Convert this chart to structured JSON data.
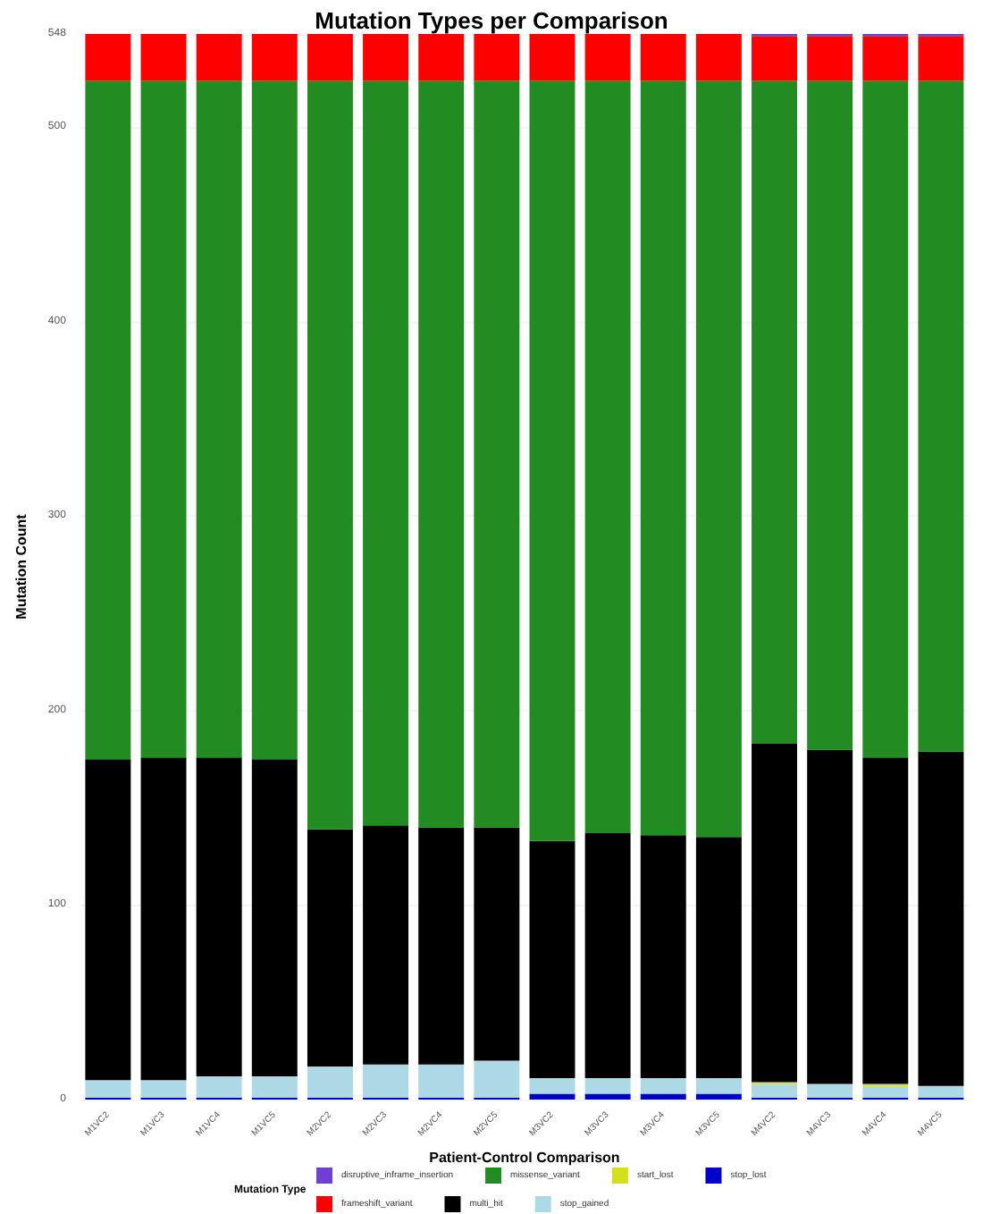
{
  "chart_data": {
    "type": "bar",
    "title": "Mutation Types per Comparison",
    "xlabel": "Patient-Control Comparison",
    "ylabel": "Mutation Count",
    "legend_title": "Mutation Type",
    "categories": [
      "M1VC2",
      "M1VC3",
      "M1VC4",
      "M1VC5",
      "M2VC2",
      "M2VC3",
      "M2VC4",
      "M2VC5",
      "M3VC2",
      "M3VC3",
      "M3VC4",
      "M3VC5",
      "M4VC2",
      "M4VC3",
      "M4VC4",
      "M4VC5"
    ],
    "stacked": true,
    "ylim": [
      0,
      548
    ],
    "yticks": [
      0,
      100,
      200,
      300,
      400,
      500,
      548
    ],
    "grid": "y",
    "legend": "bottom",
    "series": [
      {
        "name": "stop_lost",
        "color": "#0000cd",
        "values": [
          1,
          1,
          1,
          1,
          1,
          1,
          1,
          1,
          3,
          3,
          3,
          3,
          1,
          1,
          1,
          1
        ]
      },
      {
        "name": "stop_gained",
        "color": "#add8e6",
        "values": [
          9,
          9,
          11,
          11,
          16,
          17,
          17,
          19,
          8,
          8,
          8,
          8,
          7,
          7,
          6,
          6
        ]
      },
      {
        "name": "start_lost",
        "color": "#d4e01c",
        "values": [
          0,
          0,
          0,
          0,
          0,
          0,
          0,
          0,
          0,
          0,
          0,
          0,
          1,
          0,
          1,
          0
        ]
      },
      {
        "name": "multi_hit",
        "color": "#000000",
        "values": [
          165,
          166,
          164,
          163,
          122,
          123,
          122,
          120,
          122,
          126,
          125,
          124,
          174,
          172,
          168,
          172
        ]
      },
      {
        "name": "missense_variant",
        "color": "#228b22",
        "values": [
          349,
          348,
          348,
          349,
          385,
          383,
          384,
          384,
          391,
          387,
          388,
          389,
          341,
          344,
          348,
          345
        ]
      },
      {
        "name": "frameshift_variant",
        "color": "#ff0000",
        "values": [
          24,
          24,
          24,
          24,
          24,
          24,
          24,
          24,
          24,
          24,
          24,
          24,
          23,
          23,
          23,
          23
        ]
      },
      {
        "name": "disruptive_inframe_insertion",
        "color": "#7040d0",
        "values": [
          0,
          0,
          0,
          0,
          0,
          0,
          0,
          0,
          0,
          0,
          0,
          0,
          1,
          1,
          1,
          1
        ]
      }
    ]
  }
}
